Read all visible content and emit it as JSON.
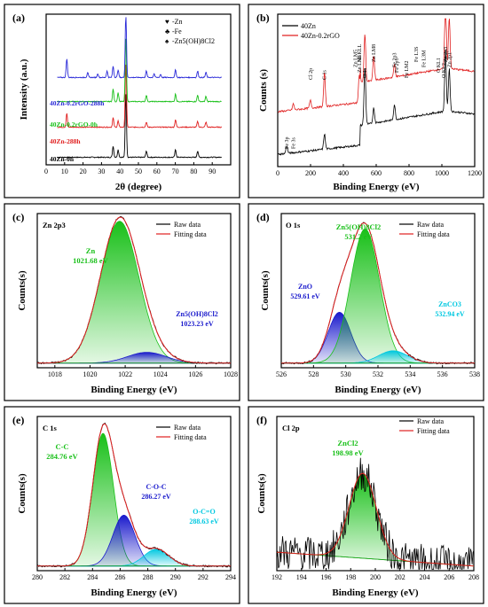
{
  "chart_data": [
    {
      "panel_label": "(a)",
      "type": "line",
      "xlabel": "2θ (degree)",
      "ylabel": "Intensity (a.u.)",
      "xlim": [
        0,
        100
      ],
      "xticks": [
        0,
        10,
        20,
        30,
        40,
        50,
        60,
        70,
        80,
        90
      ],
      "legend": [
        {
          "symbol": "♥",
          "text": "-Zn"
        },
        {
          "symbol": "♣",
          "text": "-Fe"
        },
        {
          "symbol": "♠",
          "text": "-Zn5(OH)8Cl2"
        }
      ],
      "series": [
        {
          "name": "40Zn-0h",
          "color": "#000000",
          "baseline": 0.05,
          "peaks": [
            [
              36.3,
              0.18
            ],
            [
              39.0,
              0.12
            ],
            [
              43.2,
              1.0
            ],
            [
              54.3,
              0.1
            ],
            [
              70.1,
              0.12
            ],
            [
              82.1,
              0.1
            ]
          ]
        },
        {
          "name": "40Zn-288h",
          "color": "#e02020",
          "baseline": 0.25,
          "peaks": [
            [
              11.2,
              0.22
            ],
            [
              36.3,
              0.15
            ],
            [
              39.0,
              0.1
            ],
            [
              43.2,
              1.0
            ],
            [
              54.3,
              0.08
            ],
            [
              70.1,
              0.12
            ],
            [
              82.1,
              0.09
            ],
            [
              86.6,
              0.08
            ]
          ]
        },
        {
          "name": "40Zn-0.2rGO-0h",
          "color": "#19c019",
          "baseline": 0.42,
          "peaks": [
            [
              36.3,
              0.2
            ],
            [
              39.0,
              0.14
            ],
            [
              43.2,
              1.0
            ],
            [
              54.3,
              0.1
            ],
            [
              70.1,
              0.12
            ],
            [
              82.1,
              0.1
            ],
            [
              86.6,
              0.08
            ]
          ]
        },
        {
          "name": "40Zn-0.2rGO-288h",
          "color": "#2a2ad8",
          "baseline": 0.58,
          "peaks": [
            [
              11.2,
              0.3
            ],
            [
              22.5,
              0.08
            ],
            [
              28.0,
              0.06
            ],
            [
              33.0,
              0.1
            ],
            [
              36.3,
              0.18
            ],
            [
              39.0,
              0.12
            ],
            [
              43.2,
              1.0
            ],
            [
              54.3,
              0.1
            ],
            [
              58.5,
              0.06
            ],
            [
              62.0,
              0.05
            ],
            [
              70.1,
              0.12
            ],
            [
              82.1,
              0.1
            ],
            [
              86.6,
              0.08
            ]
          ]
        }
      ]
    },
    {
      "panel_label": "(b)",
      "type": "line",
      "xlabel": "Binding Energy (eV)",
      "ylabel": "Counts (s)",
      "xlim": [
        0,
        1200
      ],
      "xticks": [
        0,
        200,
        400,
        600,
        800,
        1000,
        1200
      ],
      "series": [
        {
          "name": "40Zn",
          "color": "#000000"
        },
        {
          "name": "40Zn-0.2rGO",
          "color": "#e02020"
        }
      ],
      "peak_labels": [
        {
          "text": "Fe 3p",
          "x": 55
        },
        {
          "text": "Fe 3s",
          "x": 95
        },
        {
          "text": "Cl 2p",
          "x": 199
        },
        {
          "text": "C 1s",
          "x": 285
        },
        {
          "text": "Na KLL",
          "x": 497
        },
        {
          "text": "Zn LM5",
          "x": 472
        },
        {
          "text": "Zn LM5",
          "x": 498
        },
        {
          "text": "O 1s",
          "x": 531
        },
        {
          "text": "Zn LM8",
          "x": 585
        },
        {
          "text": "Fe 2p3",
          "x": 711
        },
        {
          "text": "Fe 2p1",
          "x": 725
        },
        {
          "text": "Fe LM2",
          "x": 784
        },
        {
          "text": "Fe L3S",
          "x": 842
        },
        {
          "text": "Fe L3M",
          "x": 888
        },
        {
          "text": "O KL1",
          "x": 978
        },
        {
          "text": "O KL2",
          "x": 1010
        },
        {
          "text": "Zn 2p3",
          "x": 1022
        },
        {
          "text": "Zn 2p1",
          "x": 1045
        }
      ]
    },
    {
      "panel_label": "(c)",
      "type": "line",
      "title": "Zn 2p3",
      "xlabel": "Binding Energy (eV)",
      "ylabel": "Counts(s)",
      "xlim": [
        1017,
        1028
      ],
      "xticks": [
        1018,
        1020,
        1022,
        1024,
        1026,
        1028
      ],
      "legend": [
        "Raw data",
        "Fitting data"
      ],
      "components": [
        {
          "name": "Zn",
          "center": 1021.68,
          "center_label": "1021.68 eV",
          "amplitude": 0.92,
          "width": 1.1,
          "color": "#19c019"
        },
        {
          "name": "Zn5(OH)8Cl2",
          "center": 1023.23,
          "center_label": "1023.23 eV",
          "amplitude": 0.07,
          "width": 1.1,
          "color": "#1a1acc"
        }
      ]
    },
    {
      "panel_label": "(d)",
      "type": "line",
      "title": "O 1s",
      "xlabel": "Binding Energy (eV)",
      "ylabel": "Counts(s)",
      "xlim": [
        526,
        538
      ],
      "xticks": [
        526,
        528,
        530,
        532,
        534,
        536,
        538
      ],
      "legend": [
        "Raw data",
        "Fitting data"
      ],
      "components": [
        {
          "name": "ZnO",
          "center": 529.61,
          "center_label": "529.61 eV",
          "amplitude": 0.33,
          "width": 0.7,
          "color": "#1a1acc"
        },
        {
          "name": "Zn5(OH)8Cl2",
          "center": 531.2,
          "center_label": "531.2 eV",
          "amplitude": 0.87,
          "width": 0.9,
          "color": "#19c019"
        },
        {
          "name": "ZnCO3",
          "center": 532.94,
          "center_label": "532.94 eV",
          "amplitude": 0.08,
          "width": 0.9,
          "color": "#00c8e0"
        }
      ]
    },
    {
      "panel_label": "(e)",
      "type": "line",
      "title": "C 1s",
      "xlabel": "Binding Energy (eV)",
      "ylabel": "Counts(s)",
      "xlim": [
        280,
        294
      ],
      "xticks": [
        280,
        282,
        284,
        286,
        288,
        290,
        292,
        294
      ],
      "legend": [
        "Raw data",
        "Fitting data"
      ],
      "components": [
        {
          "name": "C-C",
          "center": 284.76,
          "center_label": "284.76 eV",
          "amplitude": 0.86,
          "width": 0.75,
          "color": "#19c019"
        },
        {
          "name": "C-O-C",
          "center": 286.27,
          "center_label": "286.27 eV",
          "amplitude": 0.33,
          "width": 0.8,
          "color": "#1a1acc"
        },
        {
          "name": "O-C=O",
          "center": 288.63,
          "center_label": "288.63 eV",
          "amplitude": 0.11,
          "width": 0.9,
          "color": "#00c8e0"
        }
      ]
    },
    {
      "panel_label": "(f)",
      "type": "line",
      "title": "Cl 2p",
      "xlabel": "Binding Energy (eV)",
      "ylabel": "Counts(s)",
      "xlim": [
        192,
        208
      ],
      "xticks": [
        192,
        194,
        196,
        198,
        200,
        202,
        204,
        206,
        208
      ],
      "legend": [
        "Raw data",
        "Fitting data"
      ],
      "components": [
        {
          "name": "ZnCl2",
          "center": 198.98,
          "center_label": "198.98 eV",
          "amplitude": 0.55,
          "width": 1.1,
          "color": "#19c019"
        }
      ]
    }
  ]
}
